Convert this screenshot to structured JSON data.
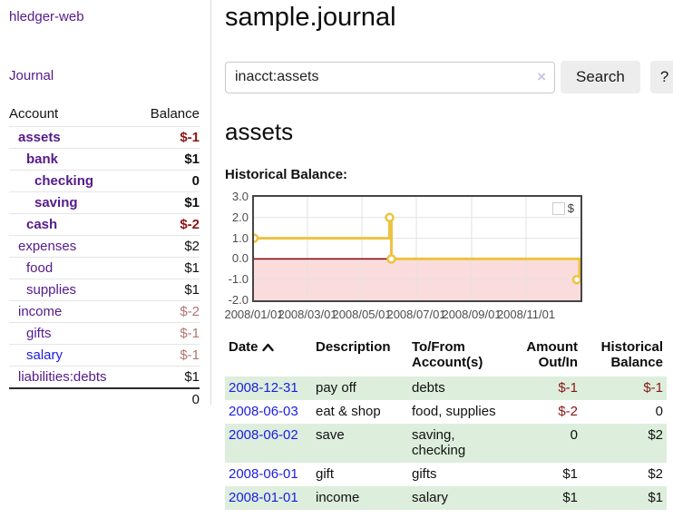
{
  "sidebar": {
    "app_title": "hledger-web",
    "nav": [
      {
        "label": "Journal"
      }
    ],
    "accounts_table": {
      "headers": [
        "Account",
        "Balance"
      ],
      "rows": [
        {
          "account": "assets",
          "indent": 0,
          "balance": "$-1",
          "bold": true,
          "negative": "strong"
        },
        {
          "account": "bank",
          "indent": 1,
          "balance": "$1",
          "bold": true
        },
        {
          "account": "checking",
          "indent": 2,
          "balance": "0",
          "bold": true
        },
        {
          "account": "saving",
          "indent": 2,
          "balance": "$1",
          "bold": true
        },
        {
          "account": "cash",
          "indent": 1,
          "balance": "$-2",
          "bold": true,
          "negative": "strong"
        },
        {
          "account": "expenses",
          "indent": 0,
          "balance": "$2"
        },
        {
          "account": "food",
          "indent": 1,
          "balance": "$1"
        },
        {
          "account": "supplies",
          "indent": 1,
          "balance": "$1"
        },
        {
          "account": "income",
          "indent": 0,
          "balance": "$-2",
          "negative": "muted"
        },
        {
          "account": "gifts",
          "indent": 1,
          "balance": "$-1",
          "negative": "muted"
        },
        {
          "account": "salary",
          "indent": 1,
          "balance": "$-1",
          "negative": "muted",
          "link_color": "blue"
        },
        {
          "account": "liabilities:debts",
          "indent": 0,
          "balance": "$1"
        }
      ],
      "total": "0"
    }
  },
  "main": {
    "title": "sample.journal",
    "section_title": "assets"
  },
  "search": {
    "value": "inacct:assets",
    "clear_icon": "×",
    "button_label": "Search",
    "help_label": "?"
  },
  "chart_data": {
    "type": "line",
    "title": "Historical Balance:",
    "series": [
      {
        "name": "$",
        "color": "#edc240",
        "step": true,
        "points": [
          [
            "2008-01-01",
            1.0
          ],
          [
            "2008-06-01",
            2.0
          ],
          [
            "2008-06-03",
            0.0
          ],
          [
            "2008-12-31",
            -1.0
          ]
        ]
      }
    ],
    "x_start": "2008-01-01",
    "x_end": "2008-12-31",
    "xticks": [
      "2008/01/01",
      "2008/03/01",
      "2008/05/01",
      "2008/07/01",
      "2008/09/01",
      "2008/11/01"
    ],
    "yticks": [
      3.0,
      2.0,
      1.0,
      0.0,
      -1.0,
      -2.0
    ],
    "ylim": [
      -2.0,
      3.0
    ],
    "grid": true,
    "legend_position": "top-right",
    "negative_region_color": "#fbdcdc",
    "zero_line_color": "#8b0000",
    "gridline_color": "#e2e2e2",
    "border_color": "#454545"
  },
  "register": {
    "headers": {
      "date": "Date",
      "description": "Description",
      "account": "To/From Account(s)",
      "amount": "Amount Out/In",
      "balance": "Historical Balance"
    },
    "rows": [
      {
        "date": "2008-12-31",
        "description": "pay off",
        "accounts": "debts",
        "amount": "$-1",
        "amount_negative": true,
        "balance": "$-1",
        "balance_negative": true
      },
      {
        "date": "2008-06-03",
        "description": "eat & shop",
        "accounts": "food, supplies",
        "amount": "$-2",
        "amount_negative": true,
        "balance": "0",
        "balance_negative": false
      },
      {
        "date": "2008-06-02",
        "description": "save",
        "accounts": "saving, checking",
        "amount": "0",
        "amount_negative": false,
        "balance": "$2",
        "balance_negative": false
      },
      {
        "date": "2008-06-01",
        "description": "gift",
        "accounts": "gifts",
        "amount": "$1",
        "amount_negative": false,
        "balance": "$2",
        "balance_negative": false
      },
      {
        "date": "2008-01-01",
        "description": "income",
        "accounts": "salary",
        "amount": "$1",
        "amount_negative": false,
        "balance": "$1",
        "balance_negative": false
      }
    ]
  }
}
